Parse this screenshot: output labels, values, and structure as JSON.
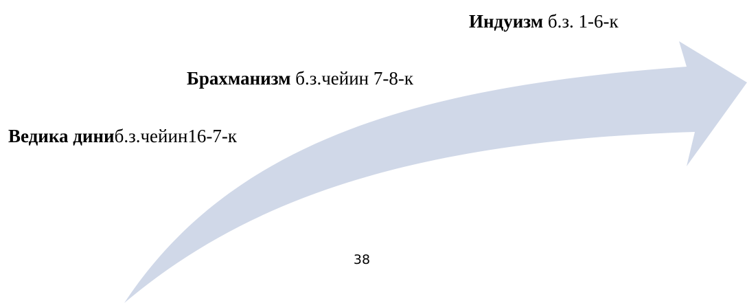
{
  "arrow": {
    "color": "#d0d8e8"
  },
  "stages": [
    {
      "name": "Индуизм",
      "period": "б.з. 1-6-к"
    },
    {
      "name": "Брахманизм",
      "period": "б.з.чейин 7-8-к"
    },
    {
      "name": "Ведика дини",
      "period": "б.з.чейин16-7-к"
    }
  ],
  "page_number": "38"
}
